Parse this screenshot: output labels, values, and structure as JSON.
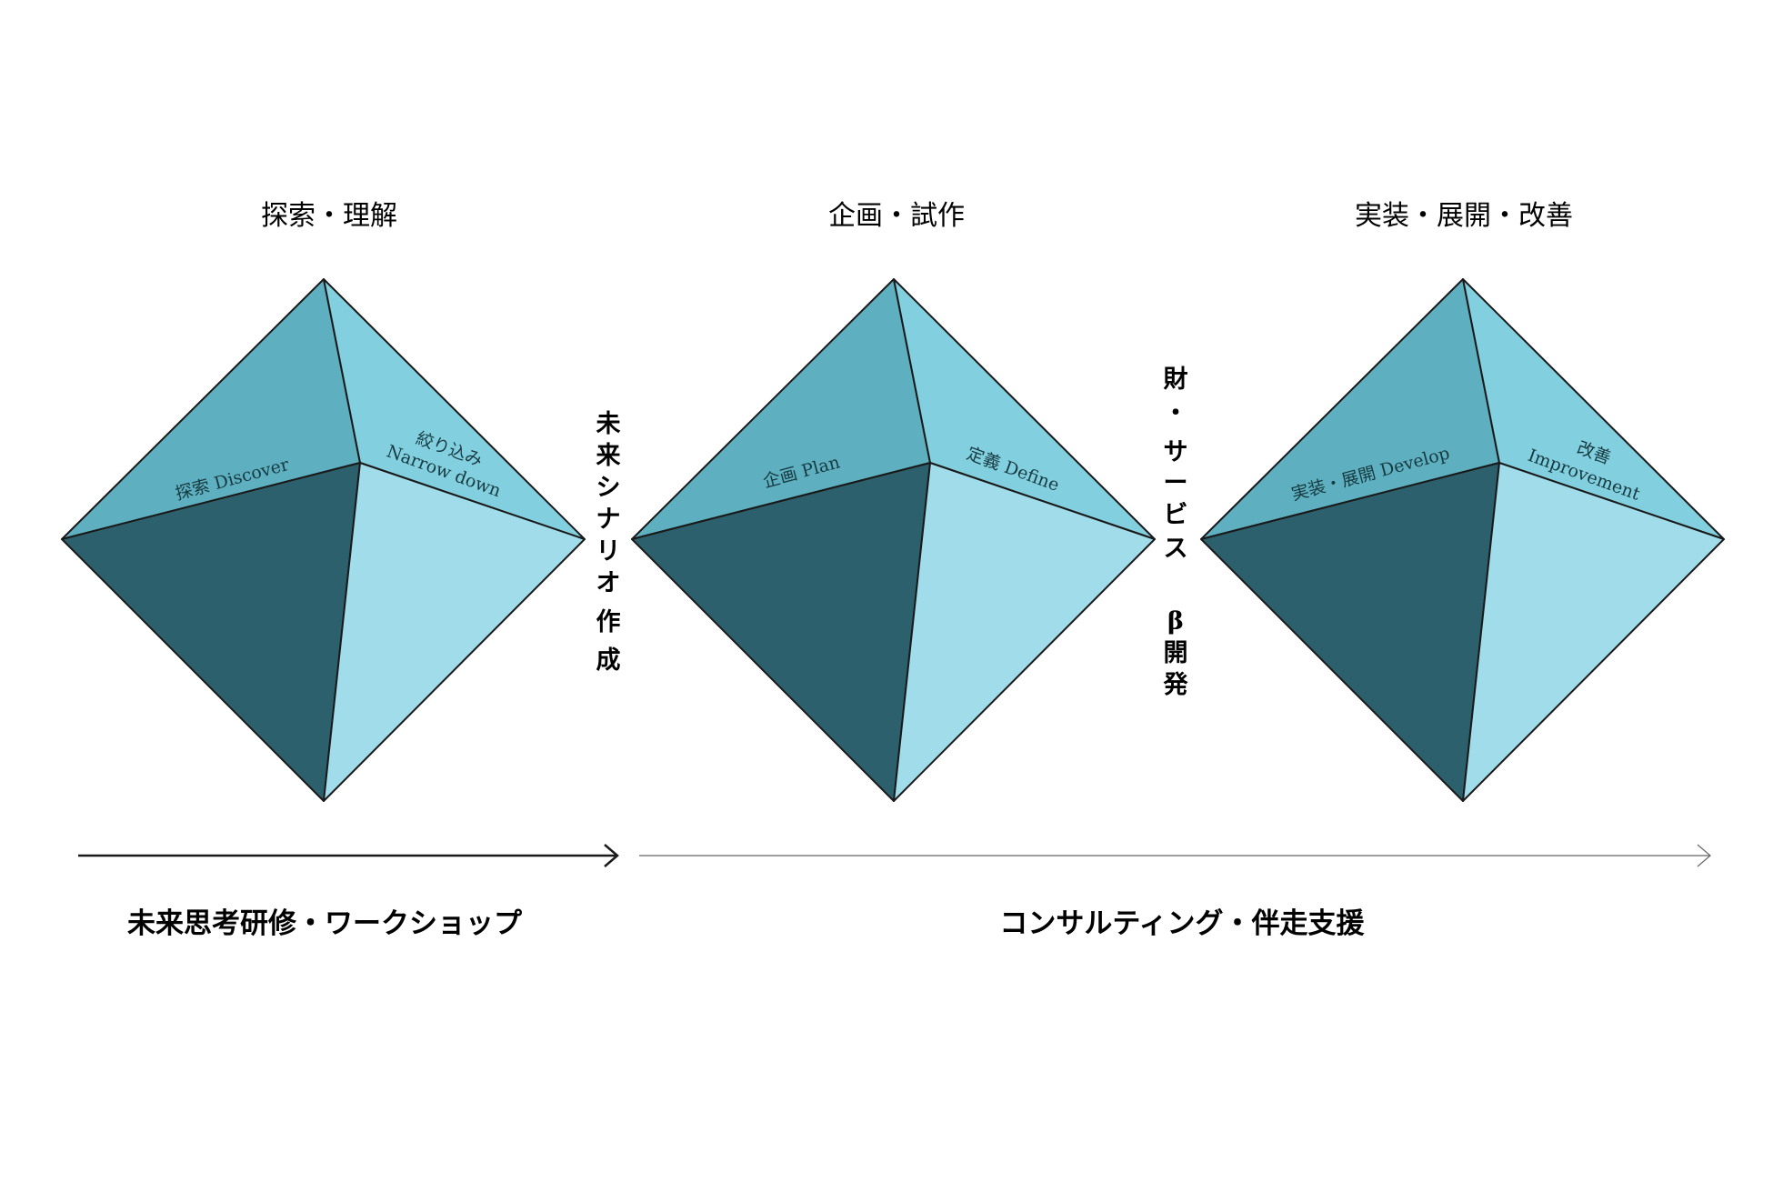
{
  "stages": [
    {
      "title": "探索・理解",
      "left_face": "探索  Discover",
      "right_face": [
        "絞り込み",
        "Narrow down"
      ]
    },
    {
      "title": "企画・試作",
      "left_face": "企画  Plan",
      "right_face": [
        "定義  Define"
      ]
    },
    {
      "title": "実装・展開・改善",
      "left_face": "実装・展開  Develop",
      "right_face": [
        "改善",
        "Improvement"
      ]
    }
  ],
  "transitions": [
    {
      "chars": [
        "未",
        "来",
        "シ",
        "ナ",
        "リ",
        "オ",
        "作",
        "成"
      ]
    },
    {
      "chars": [
        "財",
        "・",
        "サ",
        "ー",
        "ビ",
        "ス",
        "",
        "β",
        "開",
        "発"
      ]
    }
  ],
  "bottom": {
    "left_label": "未来思考研修・ワークショップ",
    "right_label": "コンサルティング・伴走支援"
  },
  "colors": {
    "face_top_left": "#5eb0c1",
    "face_top_right": "#82cfdf",
    "face_bottom_left": "#2c606c",
    "face_bottom_right": "#a1dceb",
    "edge": "#1a1a1a"
  }
}
